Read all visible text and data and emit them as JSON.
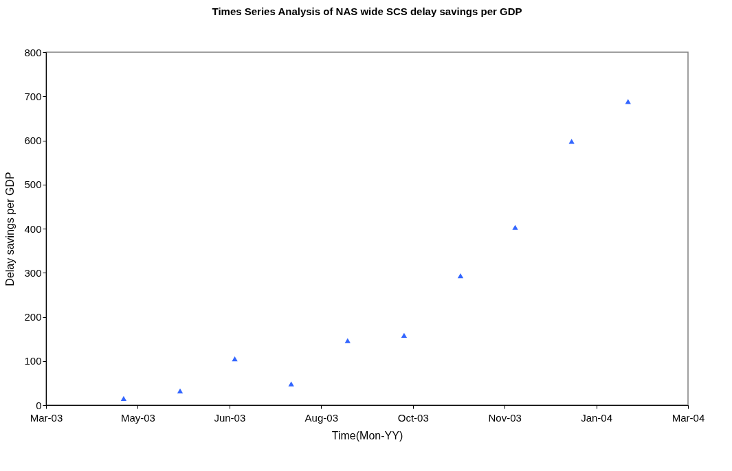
{
  "chart_data": {
    "type": "scatter",
    "title": "Times Series Analysis of NAS wide SCS delay savings per GDP",
    "xlabel": "Time(Mon-YY)",
    "ylabel": "Delay savings per GDP",
    "marker": "triangle",
    "grid": false,
    "legend": false,
    "x": [
      "2003-04-27",
      "2003-05-29",
      "2003-06-29",
      "2003-07-31",
      "2003-09-01",
      "2003-10-03",
      "2003-11-04",
      "2003-12-05",
      "2004-01-06",
      "2004-02-07"
    ],
    "series": [
      {
        "color": "#3366ff",
        "values": [
          15,
          32,
          105,
          48,
          146,
          158,
          293,
          403,
          598,
          688
        ]
      }
    ],
    "xlim": [
      "2003-03-14",
      "2004-03-12"
    ],
    "xticks": [
      {
        "value": "2003-03-14",
        "label": "Mar-03"
      },
      {
        "value": "2003-05-05",
        "label": "May-03"
      },
      {
        "value": "2003-06-26",
        "label": "Jun-03"
      },
      {
        "value": "2003-08-17",
        "label": "Aug-03"
      },
      {
        "value": "2003-10-08",
        "label": "Oct-03"
      },
      {
        "value": "2003-11-29",
        "label": "Nov-03"
      },
      {
        "value": "2004-01-20",
        "label": "Jan-04"
      },
      {
        "value": "2004-03-12",
        "label": "Mar-04"
      }
    ],
    "ylim": [
      0,
      800
    ],
    "yticks": [
      0,
      100,
      200,
      300,
      400,
      500,
      600,
      700,
      800
    ]
  }
}
